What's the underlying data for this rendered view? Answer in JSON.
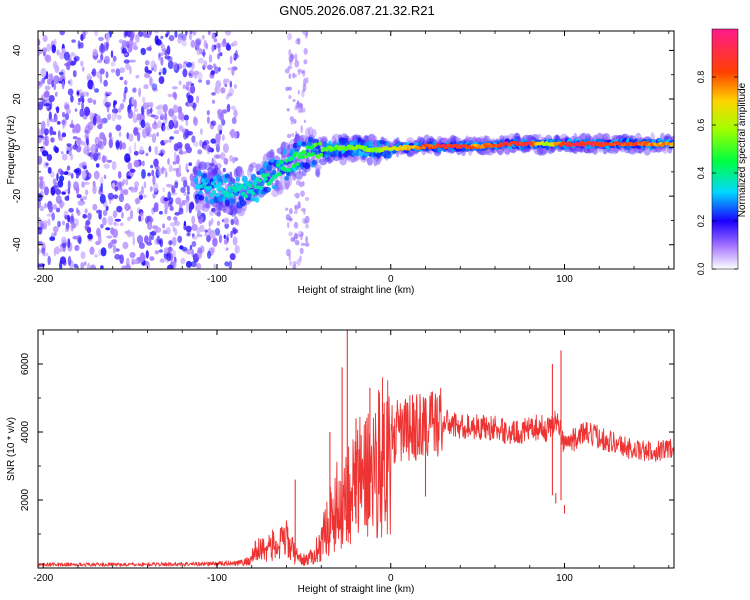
{
  "title": "GN05.2026.087.21.32.R21",
  "chart_data": [
    {
      "type": "heatmap",
      "name": "spectrogram",
      "xlabel": "Height of straight line (km)",
      "ylabel": "Frequency (Hz)",
      "xlim": [
        -203,
        163
      ],
      "ylim": [
        -50,
        48
      ],
      "xticks": [
        -200,
        -100,
        0,
        100
      ],
      "yticks": [
        -40,
        -20,
        0,
        20,
        40
      ],
      "noise_region_km": [
        -203,
        -88
      ],
      "signal_start_km": -112,
      "ridge": {
        "x": [
          -112,
          -100,
          -90,
          -80,
          -70,
          -60,
          -50,
          -40,
          -30,
          -20,
          -10,
          0,
          10,
          20,
          30,
          40,
          50,
          60,
          70,
          80,
          90,
          100,
          110,
          120,
          130,
          140,
          150,
          163
        ],
        "y": [
          -16,
          -17,
          -18,
          -17,
          -12,
          -7,
          -3,
          -1,
          0,
          0,
          -1,
          -0.5,
          0,
          0.5,
          0.5,
          0.5,
          0.5,
          1,
          1.5,
          1.5,
          1.5,
          1.5,
          1.5,
          1.5,
          1.5,
          1.5,
          1.5,
          1.5
        ],
        "amplitude": [
          0.35,
          0.35,
          0.4,
          0.4,
          0.42,
          0.45,
          0.5,
          0.55,
          0.55,
          0.6,
          0.62,
          0.68,
          0.75,
          0.85,
          0.95,
          0.95,
          0.8,
          0.9,
          0.95,
          0.95,
          0.6,
          0.95,
          0.95,
          0.95,
          0.92,
          0.9,
          0.85,
          0.8
        ]
      },
      "colorbar": {
        "label": "Normalized spectral amplitude",
        "range": [
          0,
          1
        ],
        "ticks": [
          "0.0",
          "0.2",
          "0.4",
          "0.6",
          "0.8"
        ]
      }
    },
    {
      "type": "line",
      "name": "snr",
      "xlabel": "Height of straight line (km)",
      "ylabel": "SNR (10 * v/v)",
      "xlim": [
        -203,
        163
      ],
      "ylim": [
        0,
        7000
      ],
      "xticks": [
        -200,
        -100,
        0,
        100
      ],
      "yticks": [
        2000,
        4000,
        6000
      ],
      "color": "#ee3333",
      "envelope": {
        "x": [
          -203,
          -150,
          -100,
          -82,
          -78,
          -70,
          -65,
          -60,
          -55,
          -50,
          -45,
          -40,
          -35,
          -30,
          -25,
          -20,
          -15,
          -10,
          -5,
          0,
          5,
          10,
          20,
          30,
          40,
          50,
          60,
          70,
          80,
          85,
          90,
          95,
          100,
          105,
          110,
          120,
          130,
          140,
          150,
          163
        ],
        "y": [
          120,
          120,
          150,
          200,
          500,
          700,
          650,
          900,
          400,
          250,
          350,
          800,
          1500,
          2000,
          2300,
          2600,
          2900,
          3100,
          3500,
          3800,
          4000,
          4100,
          4200,
          4350,
          4200,
          4200,
          4150,
          4000,
          4100,
          4200,
          4100,
          4400,
          3700,
          3800,
          4000,
          3900,
          3700,
          3500,
          3450,
          3600
        ]
      },
      "spikes": [
        {
          "x": -55,
          "y": 2600
        },
        {
          "x": -35,
          "y": 4000
        },
        {
          "x": -28,
          "y": 5900
        },
        {
          "x": -25,
          "y": 7000
        },
        {
          "x": -20,
          "y": 4400
        },
        {
          "x": -12,
          "y": 5300
        },
        {
          "x": 20,
          "y": 5000
        },
        {
          "x": 93,
          "y": 6000
        },
        {
          "x": 95,
          "y": 1900
        },
        {
          "x": 98,
          "y": 6400
        },
        {
          "x": 100,
          "y": 1600
        }
      ]
    }
  ]
}
